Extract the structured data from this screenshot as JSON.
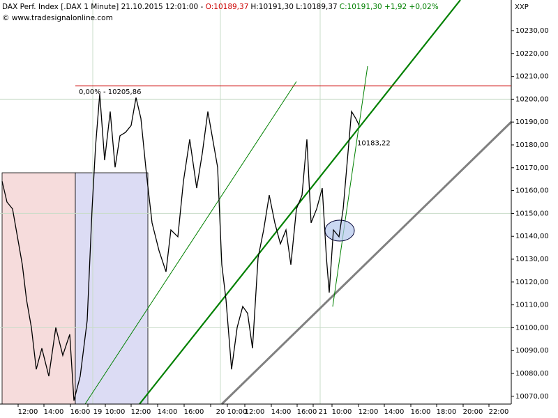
{
  "chart_data": {
    "type": "line",
    "title": "DAX Perf. Index [.DAX  1 Minute] 21.10.2015 12:01:00 - ",
    "ohlc_open": "O:10189,37",
    "ohlc_hl": "H:10191,30 L:10189,37",
    "ohlc_close": "C:10191,30 +1,92 +0,02%",
    "source": "© www.tradesignalonline.com",
    "symbol_label": "XXP",
    "series": [
      {
        "name": "DAX",
        "color": "#000000",
        "x": [
          3,
          10,
          18,
          25,
          32,
          38,
          45,
          52,
          60,
          70,
          80,
          90,
          100,
          106,
          115,
          125,
          132,
          137,
          143,
          150,
          158,
          165,
          172,
          180,
          188,
          195,
          202,
          210,
          218,
          228,
          238,
          245,
          255,
          263,
          272,
          282,
          290,
          298,
          305,
          312,
          318,
          324,
          332,
          340,
          348,
          355,
          362,
          370,
          378,
          386,
          394,
          402,
          410,
          417,
          425,
          433,
          440,
          446,
          454,
          462,
          468,
          472,
          478,
          486,
          492,
          498,
          504,
          510,
          515
        ],
        "values": [
          10164.1,
          10155.0,
          10152.0,
          10139.8,
          10127.6,
          10112.3,
          10100.1,
          10081.8,
          10091.0,
          10078.8,
          10100.1,
          10087.9,
          10097.1,
          10068.1,
          10078.8,
          10103.2,
          10152.0,
          10179.4,
          10202.3,
          10173.3,
          10194.6,
          10170.2,
          10184.0,
          10185.5,
          10188.5,
          10200.7,
          10191.6,
          10167.2,
          10145.9,
          10133.7,
          10124.5,
          10142.8,
          10139.8,
          10164.1,
          10182.4,
          10161.1,
          10176.3,
          10194.6,
          10182.4,
          10170.2,
          10127.6,
          10112.3,
          10081.8,
          10100.1,
          10109.3,
          10106.3,
          10091.0,
          10130.6,
          10142.8,
          10158.0,
          10145.9,
          10136.7,
          10142.8,
          10127.6,
          10152.0,
          10158.0,
          10182.4,
          10145.9,
          10152.0,
          10161.1,
          10130.6,
          10115.4,
          10142.8,
          10139.8,
          10152.0,
          10173.3,
          10194.6,
          10191.6,
          10188.5
        ]
      }
    ],
    "xlim": [
      0,
      733
    ],
    "ylim": [
      10066.6,
      10243.4
    ],
    "xticks": [
      {
        "value": 40,
        "label": "12:00"
      },
      {
        "value": 77,
        "label": "14:00"
      },
      {
        "value": 115,
        "label": "16:00"
      },
      {
        "value": 140,
        "label": "19"
      },
      {
        "value": 165,
        "label": "10:00"
      },
      {
        "value": 202,
        "label": "12:00"
      },
      {
        "value": 240,
        "label": "14:00"
      },
      {
        "value": 278,
        "label": "16:00"
      },
      {
        "value": 316,
        "label": "20"
      },
      {
        "value": 340,
        "label": "10:00"
      },
      {
        "value": 365,
        "label": "12:00"
      },
      {
        "value": 403,
        "label": "14:00"
      },
      {
        "value": 440,
        "label": "16:00"
      },
      {
        "value": 463,
        "label": "21"
      },
      {
        "value": 490,
        "label": "10:00"
      },
      {
        "value": 528,
        "label": "12:00"
      },
      {
        "value": 565,
        "label": "14:00"
      },
      {
        "value": 603,
        "label": "16:00"
      },
      {
        "value": 640,
        "label": "18:00"
      },
      {
        "value": 678,
        "label": "20:00"
      },
      {
        "value": 715,
        "label": "22:00"
      }
    ],
    "yticks": [
      {
        "value": 10070,
        "label": "10070,00"
      },
      {
        "value": 10080,
        "label": "10080,00"
      },
      {
        "value": 10090,
        "label": "10090,00"
      },
      {
        "value": 10100,
        "label": "10100,00"
      },
      {
        "value": 10110,
        "label": "10110,00"
      },
      {
        "value": 10120,
        "label": "10120,00"
      },
      {
        "value": 10130,
        "label": "10130,00"
      },
      {
        "value": 10140,
        "label": "10140,00"
      },
      {
        "value": 10150,
        "label": "10150,00"
      },
      {
        "value": 10160,
        "label": "10160,00"
      },
      {
        "value": 10170,
        "label": "10170,00"
      },
      {
        "value": 10180,
        "label": "10180,00"
      },
      {
        "value": 10190,
        "label": "10190,00"
      },
      {
        "value": 10200,
        "label": "10200,00"
      },
      {
        "value": 10210,
        "label": "10210,00"
      },
      {
        "value": 10220,
        "label": "10220,00"
      },
      {
        "value": 10230,
        "label": "10230,00"
      }
    ],
    "hline": {
      "value": 10205.86,
      "label": "0,00% - 10205,86",
      "color": "#cc0000"
    },
    "price_note": {
      "x": 512,
      "value": 10183.22,
      "label": "10183,22",
      "color": "#008000"
    }
  }
}
